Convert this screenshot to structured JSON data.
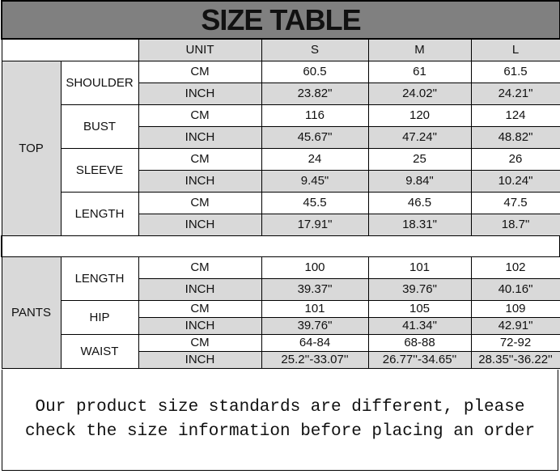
{
  "title": "SIZE TABLE",
  "header": {
    "unit": "UNIT",
    "sizes": [
      "S",
      "M",
      "L"
    ]
  },
  "colors": {
    "title_bg": "#808080",
    "shaded": "#d9d9d9",
    "border": "#000000"
  },
  "sections": [
    {
      "name": "TOP",
      "measures": [
        {
          "name": "SHOULDER",
          "rows": [
            {
              "unit": "CM",
              "values": [
                "60.5",
                "61",
                "61.5"
              ]
            },
            {
              "unit": "INCH",
              "values": [
                "23.82\"",
                "24.02\"",
                "24.21\""
              ]
            }
          ]
        },
        {
          "name": "BUST",
          "rows": [
            {
              "unit": "CM",
              "values": [
                "116",
                "120",
                "124"
              ]
            },
            {
              "unit": "INCH",
              "values": [
                "45.67\"",
                "47.24\"",
                "48.82\""
              ]
            }
          ]
        },
        {
          "name": "SLEEVE",
          "rows": [
            {
              "unit": "CM",
              "values": [
                "24",
                "25",
                "26"
              ]
            },
            {
              "unit": "INCH",
              "values": [
                "9.45\"",
                "9.84\"",
                "10.24\""
              ]
            }
          ]
        },
        {
          "name": "LENGTH",
          "rows": [
            {
              "unit": "CM",
              "values": [
                "45.5",
                "46.5",
                "47.5"
              ]
            },
            {
              "unit": "INCH",
              "values": [
                "17.91\"",
                "18.31\"",
                "18.7\""
              ]
            }
          ]
        }
      ]
    },
    {
      "name": "PANTS",
      "measures": [
        {
          "name": "LENGTH",
          "rows": [
            {
              "unit": "CM",
              "values": [
                "100",
                "101",
                "102"
              ]
            },
            {
              "unit": "INCH",
              "values": [
                "39.37\"",
                "39.76\"",
                "40.16\""
              ]
            }
          ]
        },
        {
          "name": "HIP",
          "rows": [
            {
              "unit": "CM",
              "values": [
                "101",
                "105",
                "109"
              ]
            },
            {
              "unit": "INCH",
              "values": [
                "39.76\"",
                "41.34\"",
                "42.91\""
              ]
            }
          ]
        },
        {
          "name": "WAIST",
          "rows": [
            {
              "unit": "CM",
              "values": [
                "64-84",
                "68-88",
                "72-92"
              ]
            },
            {
              "unit": "INCH",
              "values": [
                "25.2''-33.07''",
                "26.77''-34.65''",
                "28.35''-36.22''"
              ]
            }
          ]
        }
      ]
    }
  ],
  "note": {
    "line1": "Our product size standards are different, please",
    "line2": "check the size information before placing an order"
  }
}
